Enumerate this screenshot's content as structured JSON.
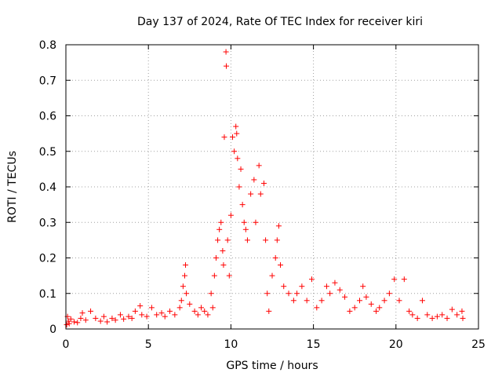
{
  "chart_data": {
    "type": "scatter",
    "title": "Day 137 of 2024, Rate Of TEC Index for receiver kiri",
    "xlabel": "GPS time / hours",
    "ylabel": "ROTI / TECUs",
    "xlim": [
      0,
      25
    ],
    "ylim": [
      0,
      0.8
    ],
    "x_ticks": [
      0,
      5,
      10,
      15,
      20,
      25
    ],
    "y_ticks": [
      0,
      0.1,
      0.2,
      0.3,
      0.4,
      0.5,
      0.6,
      0.7,
      0.8
    ],
    "x_tick_labels": [
      "0",
      "5",
      "10",
      "15",
      "20",
      "25"
    ],
    "y_tick_labels": [
      "0",
      "0.1",
      "0.2",
      "0.3",
      "0.4",
      "0.5",
      "0.6",
      "0.7",
      "0.8"
    ],
    "grid": true,
    "marker": "+",
    "marker_color": "#ff0000",
    "series": [
      {
        "points": [
          [
            0.05,
            0.012
          ],
          [
            0.1,
            0.035
          ],
          [
            0.15,
            0.022
          ],
          [
            0.2,
            0.015
          ],
          [
            0.3,
            0.028
          ],
          [
            0.5,
            0.02
          ],
          [
            0.7,
            0.018
          ],
          [
            0.9,
            0.03
          ],
          [
            1.0,
            0.045
          ],
          [
            1.2,
            0.025
          ],
          [
            1.5,
            0.05
          ],
          [
            1.8,
            0.03
          ],
          [
            2.1,
            0.022
          ],
          [
            2.3,
            0.035
          ],
          [
            2.5,
            0.02
          ],
          [
            2.8,
            0.03
          ],
          [
            3.0,
            0.025
          ],
          [
            3.3,
            0.04
          ],
          [
            3.5,
            0.028
          ],
          [
            3.8,
            0.035
          ],
          [
            4.0,
            0.03
          ],
          [
            4.2,
            0.05
          ],
          [
            4.5,
            0.065
          ],
          [
            4.6,
            0.04
          ],
          [
            4.9,
            0.035
          ],
          [
            5.2,
            0.06
          ],
          [
            5.5,
            0.04
          ],
          [
            5.8,
            0.045
          ],
          [
            6.0,
            0.035
          ],
          [
            6.3,
            0.05
          ],
          [
            6.6,
            0.04
          ],
          [
            6.9,
            0.06
          ],
          [
            7.0,
            0.08
          ],
          [
            7.1,
            0.12
          ],
          [
            7.2,
            0.15
          ],
          [
            7.25,
            0.18
          ],
          [
            7.3,
            0.1
          ],
          [
            7.5,
            0.07
          ],
          [
            7.8,
            0.05
          ],
          [
            8.0,
            0.04
          ],
          [
            8.2,
            0.06
          ],
          [
            8.4,
            0.05
          ],
          [
            8.6,
            0.04
          ],
          [
            8.8,
            0.1
          ],
          [
            8.9,
            0.06
          ],
          [
            9.0,
            0.15
          ],
          [
            9.1,
            0.2
          ],
          [
            9.2,
            0.25
          ],
          [
            9.3,
            0.28
          ],
          [
            9.4,
            0.3
          ],
          [
            9.5,
            0.22
          ],
          [
            9.55,
            0.18
          ],
          [
            9.6,
            0.54
          ],
          [
            9.7,
            0.78
          ],
          [
            9.72,
            0.74
          ],
          [
            9.8,
            0.25
          ],
          [
            9.9,
            0.15
          ],
          [
            10.0,
            0.32
          ],
          [
            10.1,
            0.54
          ],
          [
            10.2,
            0.5
          ],
          [
            10.3,
            0.57
          ],
          [
            10.35,
            0.55
          ],
          [
            10.4,
            0.48
          ],
          [
            10.5,
            0.4
          ],
          [
            10.6,
            0.45
          ],
          [
            10.7,
            0.35
          ],
          [
            10.8,
            0.3
          ],
          [
            10.9,
            0.28
          ],
          [
            11.0,
            0.25
          ],
          [
            11.2,
            0.38
          ],
          [
            11.4,
            0.42
          ],
          [
            11.5,
            0.3
          ],
          [
            11.7,
            0.46
          ],
          [
            11.8,
            0.38
          ],
          [
            12.0,
            0.41
          ],
          [
            12.1,
            0.25
          ],
          [
            12.2,
            0.1
          ],
          [
            12.3,
            0.05
          ],
          [
            12.5,
            0.15
          ],
          [
            12.7,
            0.2
          ],
          [
            12.8,
            0.25
          ],
          [
            12.9,
            0.29
          ],
          [
            13.0,
            0.18
          ],
          [
            13.2,
            0.12
          ],
          [
            13.5,
            0.1
          ],
          [
            13.8,
            0.08
          ],
          [
            14.0,
            0.1
          ],
          [
            14.3,
            0.12
          ],
          [
            14.6,
            0.08
          ],
          [
            14.9,
            0.14
          ],
          [
            15.2,
            0.06
          ],
          [
            15.5,
            0.08
          ],
          [
            15.8,
            0.12
          ],
          [
            16.0,
            0.1
          ],
          [
            16.3,
            0.13
          ],
          [
            16.6,
            0.11
          ],
          [
            16.9,
            0.09
          ],
          [
            17.2,
            0.05
          ],
          [
            17.5,
            0.06
          ],
          [
            17.8,
            0.08
          ],
          [
            18.0,
            0.12
          ],
          [
            18.2,
            0.09
          ],
          [
            18.5,
            0.07
          ],
          [
            18.8,
            0.05
          ],
          [
            19.0,
            0.06
          ],
          [
            19.3,
            0.08
          ],
          [
            19.6,
            0.1
          ],
          [
            19.9,
            0.14
          ],
          [
            20.2,
            0.08
          ],
          [
            20.5,
            0.14
          ],
          [
            20.8,
            0.05
          ],
          [
            21.0,
            0.04
          ],
          [
            21.3,
            0.03
          ],
          [
            21.6,
            0.08
          ],
          [
            21.9,
            0.04
          ],
          [
            22.2,
            0.03
          ],
          [
            22.5,
            0.035
          ],
          [
            22.8,
            0.04
          ],
          [
            23.1,
            0.03
          ],
          [
            23.4,
            0.055
          ],
          [
            23.7,
            0.04
          ],
          [
            24.0,
            0.05
          ],
          [
            24.05,
            0.03
          ]
        ]
      }
    ]
  }
}
